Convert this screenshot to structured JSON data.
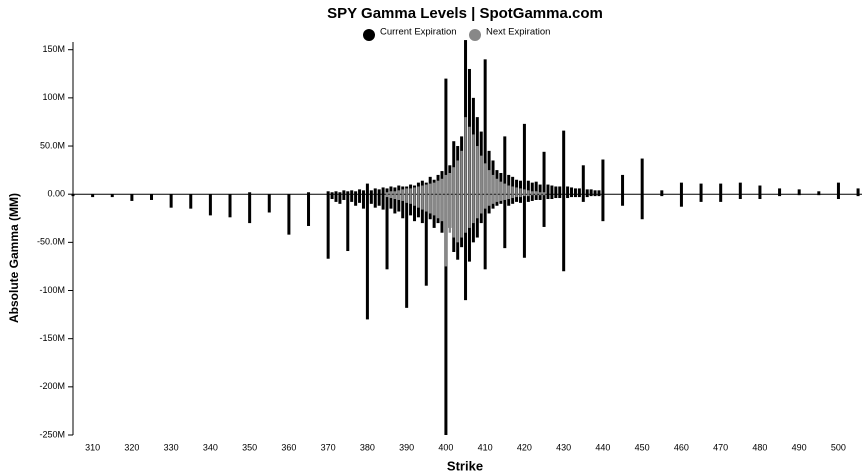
{
  "chart_data": {
    "type": "bar",
    "title": "SPY Gamma Levels | SpotGamma.com",
    "x_label": "Strike",
    "y_label": "Absolute Gamma (MM)",
    "x": [
      305,
      310,
      315,
      320,
      325,
      330,
      335,
      340,
      345,
      350,
      355,
      360,
      365,
      370,
      371,
      372,
      373,
      374,
      375,
      376,
      377,
      378,
      379,
      380,
      381,
      382,
      383,
      384,
      385,
      386,
      387,
      388,
      389,
      390,
      391,
      392,
      393,
      394,
      395,
      396,
      397,
      398,
      399,
      400,
      401,
      402,
      403,
      404,
      405,
      406,
      407,
      408,
      409,
      410,
      411,
      412,
      413,
      414,
      415,
      416,
      417,
      418,
      419,
      420,
      421,
      422,
      423,
      424,
      425,
      426,
      427,
      428,
      429,
      430,
      431,
      432,
      433,
      434,
      435,
      436,
      437,
      438,
      439,
      440,
      445,
      450,
      455,
      460,
      465,
      470,
      475,
      480,
      485,
      490,
      495,
      500,
      505
    ],
    "series": [
      {
        "name": "Current Expiration",
        "color": "#000000",
        "positive": [
          0,
          0,
          0,
          0,
          0,
          0,
          0,
          0,
          0,
          2,
          0,
          0,
          2,
          3,
          2,
          3,
          2,
          4,
          3,
          4,
          3,
          5,
          4,
          11,
          4,
          6,
          5,
          7,
          6,
          8,
          7,
          9,
          8,
          8,
          10,
          9,
          12,
          14,
          12,
          18,
          15,
          20,
          24,
          120,
          30,
          55,
          50,
          60,
          160,
          130,
          100,
          80,
          65,
          140,
          45,
          35,
          25,
          22,
          60,
          20,
          18,
          15,
          14,
          73,
          14,
          12,
          13,
          10,
          44,
          10,
          9,
          8,
          8,
          66,
          8,
          7,
          6,
          6,
          30,
          5,
          5,
          4,
          4,
          36,
          20,
          37,
          4,
          12,
          11,
          11,
          12,
          9,
          6,
          5,
          3,
          12,
          6
        ],
        "negative": [
          -2,
          -3,
          -3,
          -7,
          -6,
          -14,
          -15,
          -22,
          -24,
          -30,
          -19,
          -42,
          -33,
          -67,
          -5,
          -8,
          -10,
          -6,
          -59,
          -8,
          -12,
          -9,
          -15,
          -130,
          -10,
          -14,
          -12,
          -16,
          -78,
          -15,
          -20,
          -18,
          -25,
          -118,
          -22,
          -28,
          -24,
          -30,
          -95,
          -26,
          -35,
          -30,
          -40,
          -250,
          -35,
          -60,
          -68,
          -55,
          -110,
          -70,
          -50,
          -45,
          -30,
          -78,
          -20,
          -15,
          -12,
          -10,
          -56,
          -12,
          -10,
          -8,
          -9,
          -66,
          -8,
          -7,
          -6,
          -6,
          -34,
          -5,
          -5,
          -4,
          -4,
          -80,
          -4,
          -3,
          -3,
          -3,
          -8,
          -3,
          -2,
          -2,
          -2,
          -28,
          -12,
          -26,
          -2,
          -13,
          -8,
          -8,
          -5,
          -5,
          -2,
          -1,
          -1,
          -5,
          -2
        ]
      },
      {
        "name": "Next Expiration",
        "color": "#888888",
        "positive": [
          0,
          0,
          0,
          0,
          0,
          0,
          0,
          0,
          0,
          0,
          0,
          0,
          0,
          0,
          0,
          0,
          0,
          0,
          0,
          0,
          0,
          0,
          0,
          0,
          0,
          0,
          0,
          0,
          2,
          3,
          3,
          4,
          5,
          6,
          6,
          7,
          8,
          9,
          10,
          11,
          12,
          14,
          16,
          20,
          22,
          28,
          35,
          45,
          80,
          70,
          62,
          50,
          40,
          32,
          25,
          20,
          16,
          13,
          11,
          9,
          8,
          7,
          6,
          5,
          4,
          3,
          3,
          2,
          2,
          0,
          0,
          0,
          0,
          0,
          0,
          0,
          0,
          0,
          0,
          0,
          0,
          0,
          0,
          0,
          0,
          0,
          0,
          0,
          0,
          0,
          0,
          0,
          0,
          0,
          0,
          0,
          0
        ],
        "negative": [
          0,
          0,
          0,
          0,
          0,
          0,
          0,
          0,
          0,
          0,
          0,
          0,
          0,
          0,
          0,
          0,
          0,
          0,
          0,
          0,
          0,
          0,
          0,
          0,
          0,
          0,
          0,
          0,
          -3,
          -4,
          -5,
          -6,
          -7,
          -9,
          -10,
          -12,
          -14,
          -16,
          -18,
          -20,
          -22,
          -25,
          -28,
          -75,
          -40,
          -45,
          -50,
          -45,
          -40,
          -35,
          -30,
          -25,
          -20,
          -15,
          -12,
          -10,
          -8,
          -7,
          -6,
          -5,
          -4,
          -3,
          -3,
          -2,
          -2,
          -1,
          -1,
          -1,
          -1,
          0,
          0,
          0,
          0,
          0,
          0,
          0,
          0,
          0,
          0,
          0,
          0,
          0,
          0,
          0,
          0,
          0,
          0,
          0,
          0,
          0,
          0,
          0,
          0,
          0,
          0,
          0,
          0
        ]
      }
    ],
    "xlim": [
      305,
      506
    ],
    "ylim": [
      -250,
      158
    ],
    "xticks": [
      310,
      320,
      330,
      340,
      350,
      360,
      370,
      380,
      390,
      400,
      410,
      420,
      430,
      440,
      450,
      460,
      470,
      480,
      490,
      500
    ],
    "yticks": [
      {
        "value": -250,
        "label": "-250M"
      },
      {
        "value": -200,
        "label": "-200M"
      },
      {
        "value": -150,
        "label": "-150M"
      },
      {
        "value": -100,
        "label": "-100M"
      },
      {
        "value": -50,
        "label": "-50.0M"
      },
      {
        "value": 0,
        "label": "0.00"
      },
      {
        "value": 50,
        "label": "50.0M"
      },
      {
        "value": 100,
        "label": "100M"
      },
      {
        "value": 150,
        "label": "150M"
      }
    ]
  }
}
